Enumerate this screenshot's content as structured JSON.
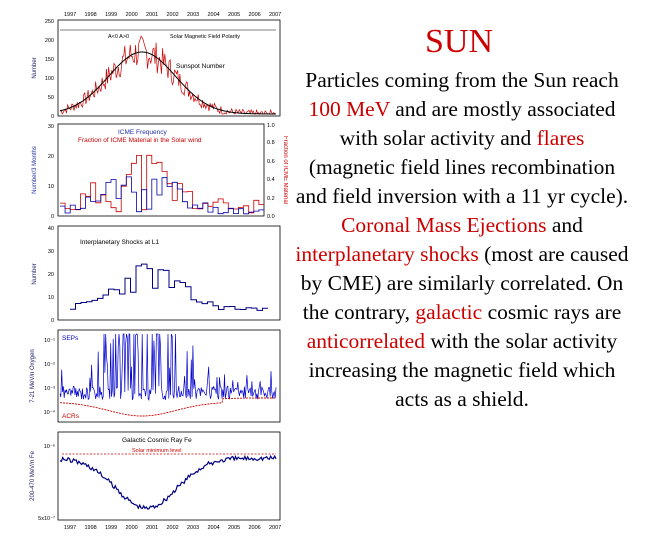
{
  "title": "SUN",
  "body": [
    {
      "t": "Particles coming from the Sun reach "
    },
    {
      "t": "100 MeV",
      "hl": true
    },
    {
      "t": " and are mostly associated with solar activity and "
    },
    {
      "t": "flares",
      "hl": true
    },
    {
      "t": " (magnetic field lines recombination and field inversion with a 11 yr cycle). "
    },
    {
      "t": "Coronal Mass Ejections",
      "hl": true
    },
    {
      "t": " and "
    },
    {
      "t": "interplanetary shocks",
      "hl": true
    },
    {
      "t": " (most are caused by CME) are similarly correlated. On the contrary, "
    },
    {
      "t": "galactic",
      "hl": true
    },
    {
      "t": " cosmic rays are "
    },
    {
      "t": "anticorrelated",
      "hl": true
    },
    {
      "t": " with the solar activity increasing the magnetic field which acts as a shield."
    }
  ],
  "colors": {
    "highlight": "#cc0000",
    "series_red": "#cc0000",
    "series_blue": "#0000cc",
    "series_dark": "#000080"
  },
  "figure": {
    "years": [
      "1997",
      "1998",
      "1999",
      "2000",
      "2001",
      "2002",
      "2003",
      "2004",
      "2005",
      "2006",
      "2007"
    ],
    "panels": {
      "sunspot": {
        "ylabel": "Number",
        "ticks": [
          "0",
          "50",
          "100",
          "150",
          "200",
          "250"
        ],
        "label": "Sunspot Number",
        "polarity_label": "Solar Magnetic Field Polarity",
        "polarity_marks": "A<0   A>0"
      },
      "icme": {
        "ylabel_left": "Number/3 Months",
        "ylabel_right": "Fraction of ICME Material",
        "ticks_left": [
          "0",
          "10",
          "20",
          "30"
        ],
        "ticks_right": [
          "0.0",
          "0.2",
          "0.4",
          "0.6",
          "0.8",
          "1.0"
        ],
        "label_1": "ICME Frequency",
        "label_2": "Fraction of ICME Material in the Solar wind"
      },
      "shocks": {
        "ylabel": "Number",
        "ticks": [
          "0",
          "10",
          "20",
          "30",
          "40"
        ],
        "label": "Interplanetary Shocks at L1"
      },
      "seps": {
        "ylabel": "7-21 MeV/n Oxygen",
        "ticks": [
          "10⁻¹",
          "10⁻²",
          "10⁻³",
          "10⁻⁴"
        ],
        "label_sep": "SEPs",
        "label_acr": "ACRs"
      },
      "gcr": {
        "ylabel": "200-470 MeV/n Fe",
        "ticks": [
          "10⁻⁶",
          "5x10⁻⁷"
        ],
        "label": "Galactic Cosmic Ray Fe",
        "min_label": "Solar minimum level"
      }
    }
  }
}
